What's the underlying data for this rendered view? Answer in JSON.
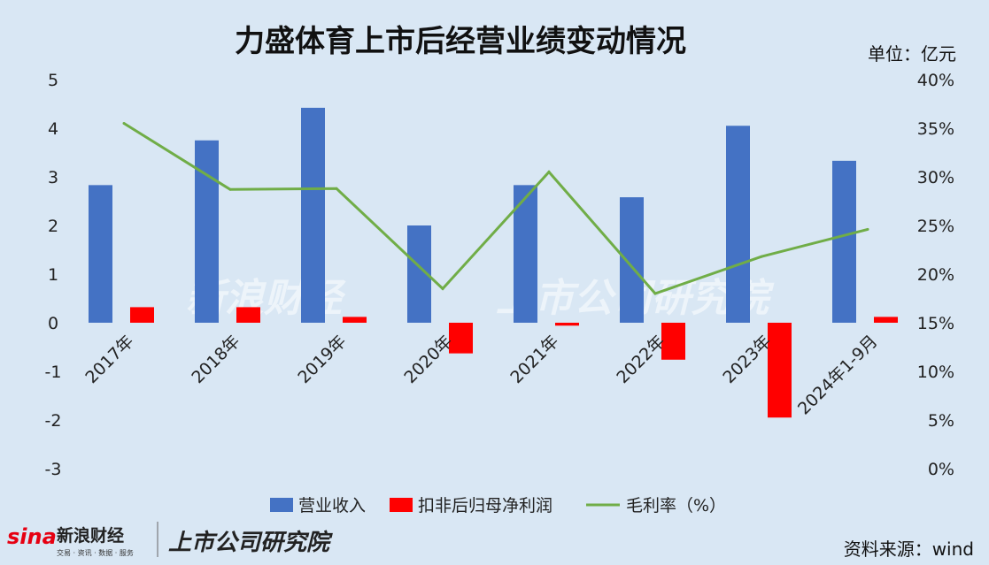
{
  "header": {
    "title": "力盛体育上市后经营业绩变动情况",
    "unit": "单位：亿元"
  },
  "footer": {
    "source": "资料来源：wind",
    "logo_sina_main": "新浪财经",
    "logo_sina_sub": "交易 · 资讯 · 数据 · 服务",
    "logo_company": "上市公司研究院"
  },
  "watermark": {
    "sina": "新浪财经",
    "company": "上市公司研究院"
  },
  "colors": {
    "revenue": "#4472c4",
    "profit": "#ff0000",
    "margin": "#70ad47",
    "background": "#d9e7f4"
  },
  "chart_data": {
    "type": "bar",
    "categories": [
      "2017年",
      "2018年",
      "2019年",
      "2020年",
      "2021年",
      "2022年",
      "2023年",
      "2024年1-9月"
    ],
    "series": [
      {
        "name": "营业收入",
        "type": "bar",
        "axis": "left",
        "values": [
          2.83,
          3.75,
          4.42,
          2.0,
          2.83,
          2.58,
          4.05,
          3.33
        ]
      },
      {
        "name": "扣非后归母净利润",
        "type": "bar",
        "axis": "left",
        "values": [
          0.32,
          0.32,
          0.12,
          -0.63,
          -0.06,
          -0.76,
          -1.95,
          0.12
        ]
      },
      {
        "name": "毛利率（%）",
        "type": "line",
        "axis": "right",
        "values": [
          35.5,
          28.7,
          28.8,
          18.5,
          30.5,
          18.0,
          21.8,
          24.6
        ]
      }
    ],
    "y_left": {
      "min": -3,
      "max": 5,
      "ticks": [
        "5",
        "4",
        "3",
        "2",
        "1",
        "0",
        "-1",
        "-2",
        "-3"
      ]
    },
    "y_right": {
      "min": 0,
      "max": 40,
      "ticks": [
        "40%",
        "35%",
        "30%",
        "25%",
        "20%",
        "15%",
        "10%",
        "5%",
        "0%"
      ]
    },
    "grid": false,
    "legend_position": "bottom"
  }
}
